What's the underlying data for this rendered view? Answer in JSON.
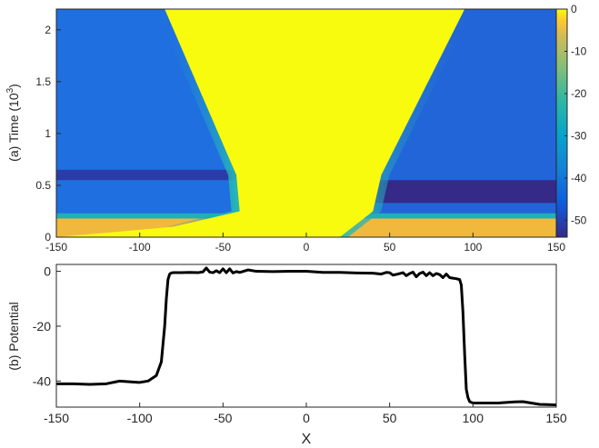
{
  "chart_data": [
    {
      "type": "heatmap",
      "ylabel_prefix": "(a) Time (10",
      "ylabel_exp": "3",
      "ylabel_suffix": ")",
      "xlim": [
        -150,
        150
      ],
      "ylim": [
        0,
        2.2
      ],
      "xticks": [
        "-150",
        "-100",
        "-50",
        "0",
        "50",
        "100",
        "150"
      ],
      "yticks": [
        "0",
        "0.5",
        "1",
        "1.5",
        "2"
      ],
      "ytick_values": [
        0,
        0.5,
        1,
        1.5,
        2
      ],
      "clim": [
        -54,
        0
      ],
      "colorbar_ticks": [
        "0",
        "-10",
        "-20",
        "-30",
        "-40",
        "-50"
      ],
      "colorbar_values": [
        0,
        -10,
        -20,
        -30,
        -40,
        -50
      ],
      "colormap": "parula",
      "colors": {
        "high": "#f9fb0e",
        "low_left": "#1f6fe0",
        "low_right": "#2265d8",
        "dark_band": "#352a87",
        "orange_band": "#f0b93e"
      },
      "front_left": [
        [
          -150,
          0.0
        ],
        [
          -80,
          0.1
        ],
        [
          -40,
          0.25
        ],
        [
          -42,
          0.6
        ],
        [
          -85,
          2.2
        ]
      ],
      "front_right": [
        [
          20,
          0.0
        ],
        [
          40,
          0.25
        ],
        [
          45,
          0.6
        ],
        [
          95,
          2.2
        ],
        [
          150,
          2.2
        ]
      ]
    },
    {
      "type": "line",
      "xlabel": "X",
      "ylabel": "(b) Potential",
      "xlim": [
        -150,
        150
      ],
      "ylim": [
        -49.5,
        2.5
      ],
      "xticks": [
        "-150",
        "-100",
        "-50",
        "0",
        "50",
        "100",
        "150"
      ],
      "yticks": [
        "0",
        "-20",
        "-40"
      ],
      "ytick_values": [
        0,
        -20,
        -40
      ],
      "series": [
        {
          "color": "#000000",
          "x": [
            -150,
            -140,
            -130,
            -120,
            -112,
            -108,
            -100,
            -95,
            -90,
            -87,
            -85,
            -84,
            -83,
            -82,
            -81,
            -80,
            -75,
            -70,
            -65,
            -62,
            -60,
            -58,
            -56,
            -54,
            -52,
            -50,
            -48,
            -46,
            -44,
            -42,
            -40,
            -35,
            -30,
            -20,
            -10,
            0,
            10,
            20,
            30,
            40,
            45,
            48,
            50,
            52,
            55,
            58,
            60,
            62,
            64,
            66,
            68,
            70,
            72,
            74,
            76,
            78,
            80,
            82,
            84,
            86,
            88,
            90,
            92,
            93,
            94,
            95,
            96,
            97,
            98,
            100,
            102,
            105,
            110,
            115,
            120,
            125,
            130,
            135,
            140,
            145,
            150
          ],
          "y": [
            -41,
            -41,
            -41.2,
            -41,
            -40,
            -40.2,
            -40.5,
            -40,
            -38,
            -33,
            -20,
            -10,
            -3,
            -1,
            -0.6,
            -0.5,
            -0.5,
            -0.4,
            -0.5,
            -0.2,
            1.2,
            -0.3,
            -0.5,
            0.2,
            -0.5,
            0.9,
            -0.5,
            0.9,
            -0.6,
            -0.1,
            -0.4,
            0.5,
            0,
            -0.1,
            0,
            0,
            -0.4,
            -0.4,
            -0.6,
            -0.7,
            -1,
            -0.4,
            -0.5,
            -1.4,
            -1,
            -0.5,
            -1.6,
            -0.8,
            -0.3,
            -2,
            -0.8,
            -0.3,
            -1.6,
            -0.5,
            -1.6,
            -0.8,
            -1.2,
            -2.3,
            -1,
            -2.3,
            -2.5,
            -2.7,
            -3,
            -5,
            -15,
            -30,
            -43,
            -46,
            -47.5,
            -48,
            -48,
            -48,
            -48,
            -48,
            -47.8,
            -47.6,
            -47.5,
            -48,
            -48.5,
            -48.6,
            -48.7
          ]
        }
      ]
    }
  ]
}
